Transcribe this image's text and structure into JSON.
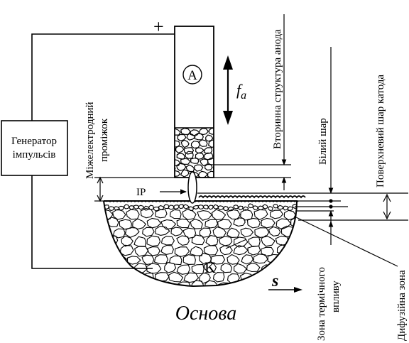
{
  "labels": {
    "plus": "+",
    "anode": "A",
    "force_var": "f",
    "force_sub": "a",
    "generator_line1": "Генератор",
    "generator_line2": "імпульсів",
    "gap": "Міжелектродний",
    "gap2": "проміжок",
    "ip": "IP",
    "cathode": "K",
    "speed": "s",
    "base": "Основа",
    "secondary_anode": "Вторинна структура анода",
    "white_layer": "Білий шар",
    "surface_cathode": "Поверхневий шар катода",
    "heat_zone1": "Зона термічного",
    "heat_zone2": "впливу",
    "diffusion_zone": "Дифузійна зона"
  },
  "icons": [
    "arrow-up-icon",
    "arrow-down-icon",
    "arrow-right-icon",
    "double-arrow-icon"
  ]
}
